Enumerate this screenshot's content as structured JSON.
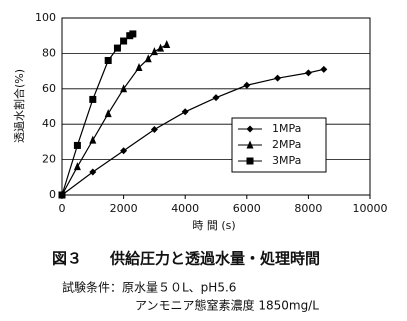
{
  "chart_data": {
    "type": "line",
    "y_label": "透過水割合(%)",
    "x_label": "時 間 (s)",
    "xlim": [
      0,
      10000
    ],
    "xticks": [
      0,
      2000,
      4000,
      6000,
      8000,
      10000
    ],
    "ylim": [
      0,
      100
    ],
    "yticks": [
      0,
      20,
      40,
      60,
      80,
      100
    ],
    "grid": true,
    "legend": "right",
    "series": [
      {
        "name": "1MPa",
        "color": "#000000",
        "marker": "diamond",
        "x": [
          0,
          1000,
          2000,
          3000,
          4000,
          5000,
          6000,
          7000,
          8000,
          8500
        ],
        "values": [
          0,
          13,
          25,
          37,
          47,
          55,
          62,
          66,
          69,
          71
        ]
      },
      {
        "name": "2MPa",
        "color": "#000000",
        "marker": "triangle",
        "x": [
          0,
          500,
          1000,
          1500,
          2000,
          2500,
          2800,
          3000,
          3200,
          3400
        ],
        "values": [
          0,
          16,
          31,
          46,
          60,
          72,
          77,
          81,
          83,
          85
        ]
      },
      {
        "name": "3MPa",
        "color": "#000000",
        "marker": "square",
        "x": [
          0,
          500,
          1000,
          1500,
          1800,
          2000,
          2200,
          2300
        ],
        "values": [
          0,
          28,
          54,
          76,
          83,
          87,
          90,
          91
        ]
      }
    ]
  },
  "caption": {
    "figure": "図３",
    "title": "供給圧力と透過水量・処理時間",
    "conditions": "試験条件：原水量５０L、pH5.6",
    "conditions2": "アンモニア態窒素濃度 1850mg/L"
  }
}
